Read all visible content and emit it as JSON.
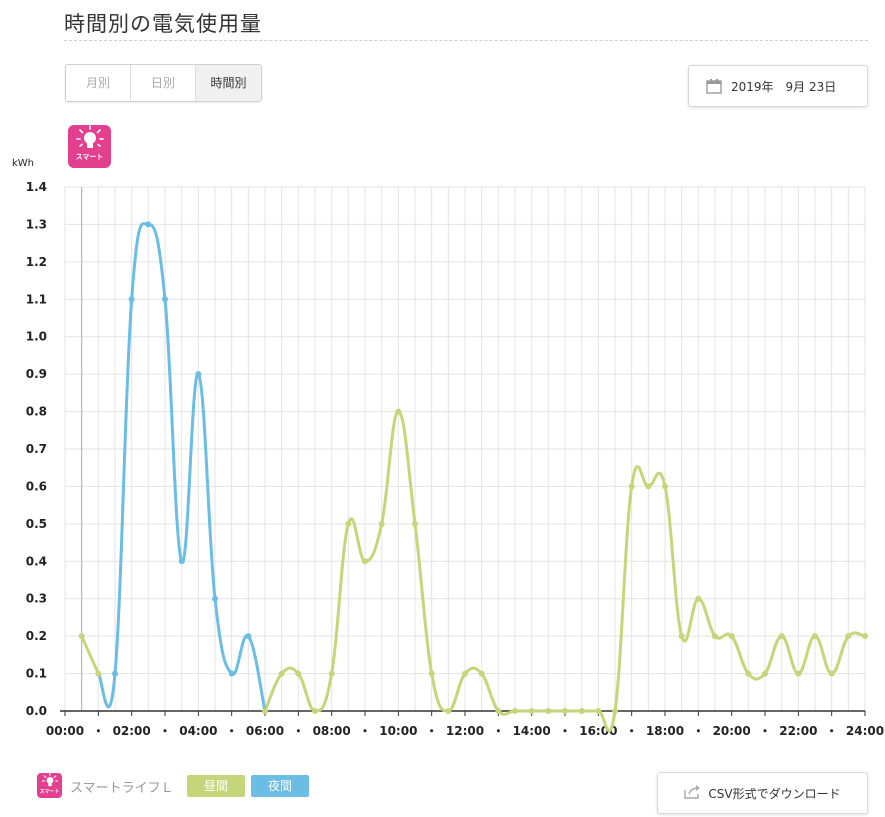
{
  "page": {
    "title": "時間別の電気使用量"
  },
  "tabs": [
    {
      "label": "月別",
      "active": false
    },
    {
      "label": "日別",
      "active": false
    },
    {
      "label": "時間別",
      "active": true
    }
  ],
  "date_picker": {
    "value": "2019年　9月 23日",
    "icon": "calendar-icon"
  },
  "smart_badge": {
    "label": "スマート",
    "icon": "lightbulb-icon",
    "color": "#e23f8f"
  },
  "legend": {
    "plan_name": "スマートライフＬ",
    "items": [
      {
        "label": "昼間",
        "color": "#c5d67a"
      },
      {
        "label": "夜間",
        "color": "#6bbde3"
      }
    ]
  },
  "csv_button": {
    "label": "CSV形式でダウンロード",
    "icon": "export-icon"
  },
  "chart_data": {
    "type": "line",
    "title": "",
    "xlabel": "",
    "ylabel": "kWh",
    "ylim": [
      0,
      1.4
    ],
    "yticks": [
      "0.0",
      "0.1",
      "0.2",
      "0.3",
      "0.4",
      "0.5",
      "0.6",
      "0.7",
      "0.8",
      "0.9",
      "1.0",
      "1.1",
      "1.2",
      "1.3",
      "1.4"
    ],
    "xlim": [
      0,
      24
    ],
    "xticks": [
      "00:00",
      "・",
      "02:00",
      "・",
      "04:00",
      "・",
      "06:00",
      "・",
      "08:00",
      "・",
      "10:00",
      "・",
      "12:00",
      "・",
      "14:00",
      "・",
      "16:00",
      "・",
      "18:00",
      "・",
      "20:00",
      "・",
      "22:00",
      "・",
      "24:00"
    ],
    "grid": true,
    "x": [
      0.5,
      1,
      1.5,
      2,
      2.5,
      3,
      3.5,
      4,
      4.5,
      5,
      5.5,
      6,
      6.5,
      7,
      7.5,
      8,
      8.5,
      9,
      9.5,
      10,
      10.5,
      11,
      11.5,
      12,
      12.5,
      13,
      13.5,
      14,
      14.5,
      15,
      15.5,
      16,
      16.5,
      17,
      17.5,
      18,
      18.5,
      19,
      19.5,
      20,
      20.5,
      21,
      21.5,
      22,
      22.5,
      23,
      23.5,
      24
    ],
    "values": [
      0.2,
      0.1,
      0.1,
      1.1,
      1.3,
      1.1,
      0.4,
      0.9,
      0.3,
      0.1,
      0.2,
      0.0,
      0.1,
      0.1,
      0.0,
      0.1,
      0.5,
      0.4,
      0.5,
      0.8,
      0.5,
      0.1,
      0.0,
      0.1,
      0.1,
      0.0,
      0.0,
      0.0,
      0.0,
      0.0,
      0.0,
      0.0,
      0.0,
      0.6,
      0.6,
      0.6,
      0.2,
      0.3,
      0.2,
      0.2,
      0.1,
      0.1,
      0.2,
      0.1,
      0.2,
      0.1,
      0.2,
      0.2
    ],
    "series": [
      {
        "name": "昼間",
        "color": "#c5d67a",
        "ranges": [
          [
            0.5,
            1
          ],
          [
            6,
            24
          ]
        ]
      },
      {
        "name": "夜間",
        "color": "#6bbde3",
        "ranges": [
          [
            1,
            6
          ]
        ]
      }
    ]
  }
}
